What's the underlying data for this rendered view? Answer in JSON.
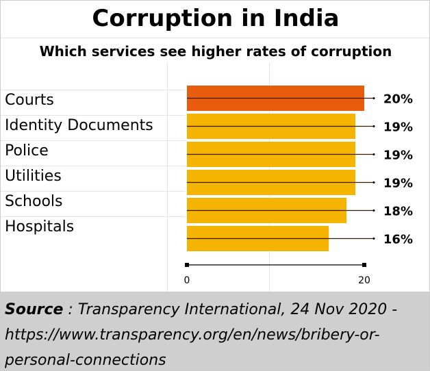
{
  "chart_data": {
    "type": "bar",
    "orientation": "horizontal",
    "title": "Corruption in India",
    "subtitle": "Which services see higher rates of corruption",
    "categories": [
      "Courts",
      "Identity Documents",
      "Police",
      "Utilities",
      "Schools",
      "Hospitals"
    ],
    "values": [
      20,
      19,
      19,
      19,
      18,
      16
    ],
    "data_labels": [
      "20%",
      "19%",
      "19%",
      "19%",
      "18%",
      "16%"
    ],
    "xlim": [
      0,
      20
    ],
    "x_ticks": [
      "0",
      "20"
    ],
    "colors": {
      "highlight": "#e85c0d",
      "default": "#f5b400"
    }
  },
  "source": {
    "label": "Source",
    "text": " : Transparency International, 24 Nov 2020 - https://www.transparency.org/en/news/bribery-or-personal-connections"
  }
}
